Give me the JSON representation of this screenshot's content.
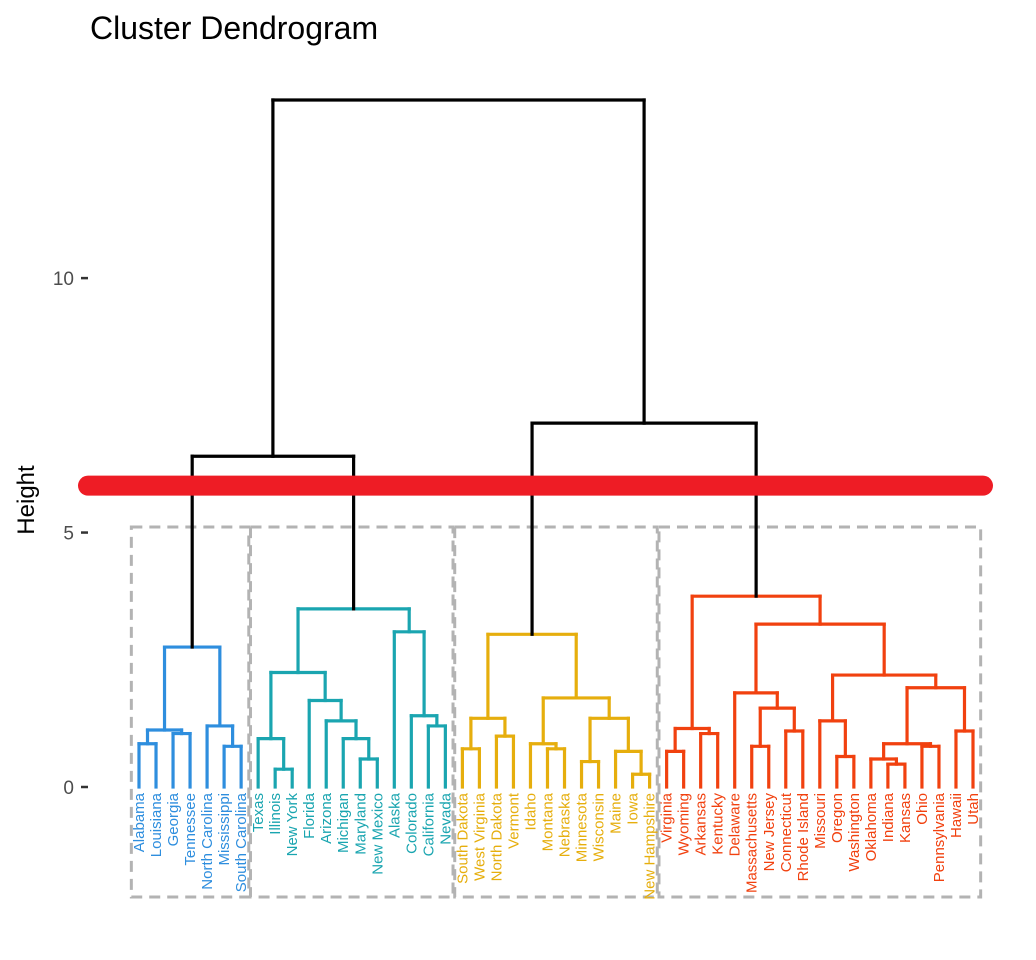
{
  "chart_data": {
    "type": "dendrogram",
    "title": "Cluster Dendrogram",
    "ylabel": "Height",
    "xlabel": "",
    "ylim": [
      0,
      13.5
    ],
    "yticks": [
      {
        "value": 0,
        "label": "0"
      },
      {
        "value": 5,
        "label": "5"
      },
      {
        "value": 10,
        "label": "10"
      }
    ],
    "cut_height": 6.0,
    "cut_color": "#ee1c25",
    "box_color": "#b3b3b3",
    "root_color": "#000000",
    "clusters": [
      {
        "color": "#2e8ede",
        "labels": [
          "Alabama",
          "Louisiana",
          "Georgia",
          "Tennessee",
          "North Carolina",
          "Mississippi",
          "South Carolina"
        ]
      },
      {
        "color": "#1aa5b0",
        "labels": [
          "Texas",
          "Illinois",
          "New York",
          "Florida",
          "Arizona",
          "Michigan",
          "Maryland",
          "New Mexico",
          "Alaska",
          "Colorado",
          "California",
          "Nevada"
        ]
      },
      {
        "color": "#e6ae0d",
        "labels": [
          "South Dakota",
          "West Virginia",
          "North Dakota",
          "Vermont",
          "Idaho",
          "Montana",
          "Nebraska",
          "Minnesota",
          "Wisconsin",
          "Maine",
          "Iowa",
          "New Hampshire"
        ]
      },
      {
        "color": "#f1410f",
        "labels": [
          "Virginia",
          "Wyoming",
          "Arkansas",
          "Kentucky",
          "Delaware",
          "Massachusetts",
          "New Jersey",
          "Connecticut",
          "Rhode Island",
          "Missouri",
          "Oregon",
          "Washington",
          "Oklahoma",
          "Indiana",
          "Kansas",
          "Ohio",
          "Pennsylvania",
          "Hawaii",
          "Utah"
        ]
      }
    ],
    "tree": {
      "h": 13.5,
      "children": [
        {
          "h": 6.5,
          "children": [
            {
              "h": 2.75,
              "children": [
                {
                  "h": 1.12,
                  "children": [
                    {
                      "h": 0.85,
                      "children": [
                        "Alabama",
                        "Louisiana"
                      ]
                    },
                    {
                      "h": 1.05,
                      "children": [
                        "Georgia",
                        "Tennessee"
                      ]
                    }
                  ]
                },
                {
                  "h": 1.2,
                  "children": [
                    "North Carolina",
                    {
                      "h": 0.8,
                      "children": [
                        "Mississippi",
                        "South Carolina"
                      ]
                    }
                  ]
                }
              ]
            },
            {
              "h": 3.5,
              "children": [
                {
                  "h": 2.25,
                  "children": [
                    {
                      "h": 0.95,
                      "children": [
                        "Texas",
                        {
                          "h": 0.35,
                          "children": [
                            "Illinois",
                            "New York"
                          ]
                        }
                      ]
                    },
                    {
                      "h": 1.7,
                      "children": [
                        "Florida",
                        {
                          "h": 1.3,
                          "children": [
                            "Arizona",
                            {
                              "h": 0.95,
                              "children": [
                                "Michigan",
                                {
                                  "h": 0.55,
                                  "children": [
                                    "Maryland",
                                    "New Mexico"
                                  ]
                                }
                              ]
                            }
                          ]
                        }
                      ]
                    }
                  ]
                },
                {
                  "h": 3.05,
                  "children": [
                    "Alaska",
                    {
                      "h": 1.4,
                      "children": [
                        "Colorado",
                        {
                          "h": 1.2,
                          "children": [
                            "California",
                            "Nevada"
                          ]
                        }
                      ]
                    }
                  ]
                }
              ]
            }
          ]
        },
        {
          "h": 7.15,
          "children": [
            {
              "h": 3.0,
              "children": [
                {
                  "h": 1.35,
                  "children": [
                    {
                      "h": 0.75,
                      "children": [
                        "South Dakota",
                        "West Virginia"
                      ]
                    },
                    {
                      "h": 1.0,
                      "children": [
                        "North Dakota",
                        "Vermont"
                      ]
                    }
                  ]
                },
                {
                  "h": 1.75,
                  "children": [
                    {
                      "h": 0.85,
                      "children": [
                        "Idaho",
                        {
                          "h": 0.75,
                          "children": [
                            "Montana",
                            "Nebraska"
                          ]
                        }
                      ]
                    },
                    {
                      "h": 1.35,
                      "children": [
                        {
                          "h": 0.5,
                          "children": [
                            "Minnesota",
                            "Wisconsin"
                          ]
                        },
                        {
                          "h": 0.7,
                          "children": [
                            "Maine",
                            {
                              "h": 0.25,
                              "children": [
                                "Iowa",
                                "New Hampshire"
                              ]
                            }
                          ]
                        }
                      ]
                    }
                  ]
                }
              ]
            },
            {
              "h": 3.75,
              "children": [
                {
                  "h": 1.15,
                  "children": [
                    {
                      "h": 0.7,
                      "children": [
                        "Virginia",
                        "Wyoming"
                      ]
                    },
                    {
                      "h": 1.05,
                      "children": [
                        "Arkansas",
                        "Kentucky"
                      ]
                    }
                  ]
                },
                {
                  "h": 3.2,
                  "children": [
                    {
                      "h": 1.85,
                      "children": [
                        "Delaware",
                        {
                          "h": 1.55,
                          "children": [
                            {
                              "h": 0.8,
                              "children": [
                                "Massachusetts",
                                "New Jersey"
                              ]
                            },
                            {
                              "h": 1.1,
                              "children": [
                                "Connecticut",
                                "Rhode Island"
                              ]
                            }
                          ]
                        }
                      ]
                    },
                    {
                      "h": 2.2,
                      "children": [
                        {
                          "h": 1.3,
                          "children": [
                            "Missouri",
                            {
                              "h": 0.6,
                              "children": [
                                "Oregon",
                                "Washington"
                              ]
                            }
                          ]
                        },
                        {
                          "h": 1.95,
                          "children": [
                            {
                              "h": 0.85,
                              "children": [
                                {
                                  "h": 0.55,
                                  "children": [
                                    "Oklahoma",
                                    {
                                      "h": 0.45,
                                      "children": [
                                        "Indiana",
                                        "Kansas"
                                      ]
                                    }
                                  ]
                                },
                                {
                                  "h": 0.8,
                                  "children": [
                                    "Ohio",
                                    "Pennsylvania"
                                  ]
                                }
                              ]
                            },
                            {
                              "h": 1.1,
                              "children": [
                                "Hawaii",
                                "Utah"
                              ]
                            }
                          ]
                        }
                      ]
                    }
                  ]
                }
              ]
            }
          ]
        }
      ]
    }
  }
}
